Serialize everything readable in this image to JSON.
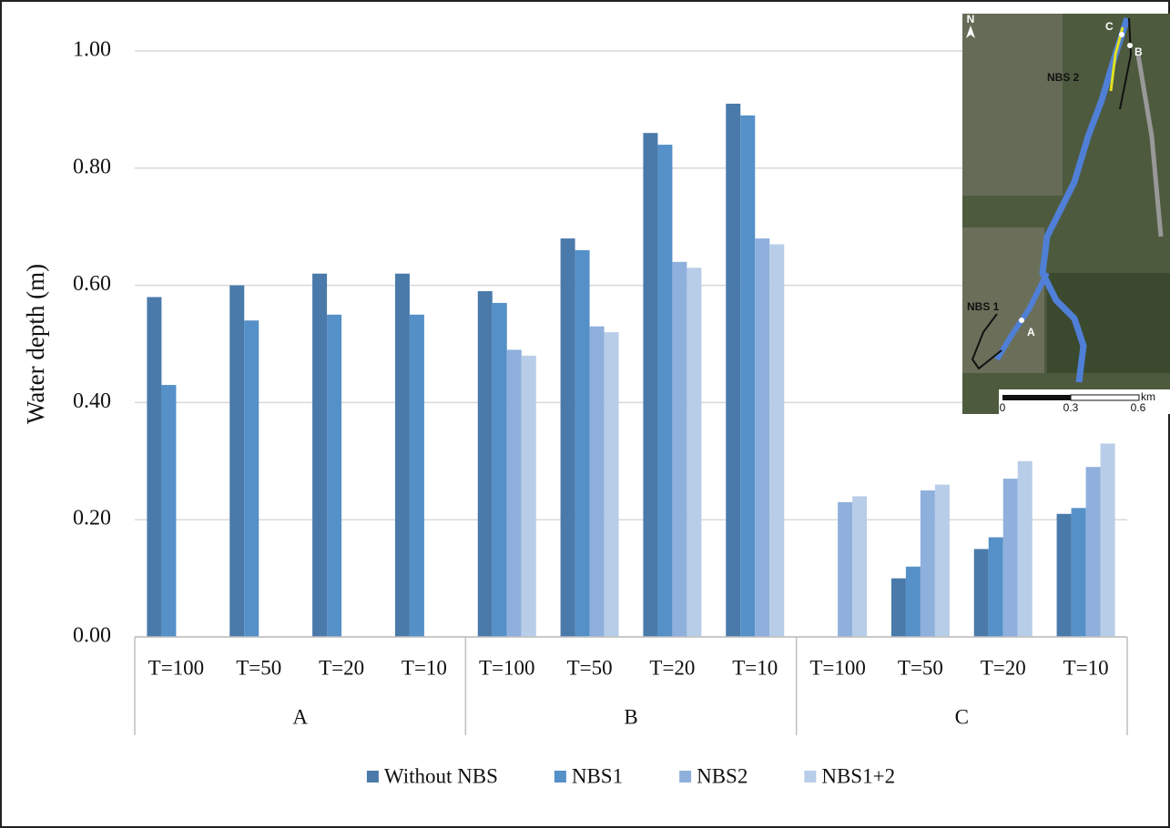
{
  "chart_data": {
    "type": "bar",
    "y_label": "Water depth (m)",
    "categories": [
      "T=100",
      "T=50",
      "T=20",
      "T=10",
      "T=100",
      "T=50",
      "T=20",
      "T=10",
      "T=100",
      "T=50",
      "T=20",
      "T=10"
    ],
    "groups": [
      "A",
      "B",
      "C"
    ],
    "series": [
      {
        "name": "Without NBS",
        "color": "#4a7aaa",
        "values": [
          0.58,
          0.6,
          0.62,
          0.62,
          0.59,
          0.68,
          0.86,
          0.91,
          null,
          0.1,
          0.15,
          0.21
        ]
      },
      {
        "name": "NBS1",
        "color": "#5590c8",
        "values": [
          0.43,
          0.54,
          0.55,
          0.55,
          0.57,
          0.66,
          0.84,
          0.89,
          null,
          0.12,
          0.17,
          0.22
        ]
      },
      {
        "name": "NBS2",
        "color": "#8fb0dc",
        "values": [
          null,
          null,
          null,
          null,
          0.49,
          0.53,
          0.64,
          0.68,
          0.23,
          0.25,
          0.27,
          0.29
        ]
      },
      {
        "name": "NBS1+2",
        "color": "#b8cde8",
        "values": [
          null,
          null,
          null,
          null,
          0.48,
          0.52,
          0.63,
          0.67,
          0.24,
          0.26,
          0.3,
          0.33
        ]
      }
    ],
    "ylim": [
      0,
      1
    ],
    "yticks": [
      {
        "value": 0,
        "label": "0.00"
      },
      {
        "value": 0.2,
        "label": "0.20"
      },
      {
        "value": 0.4,
        "label": "0.40"
      },
      {
        "value": 0.6,
        "label": "0.60"
      },
      {
        "value": 0.8,
        "label": "0.80"
      },
      {
        "value": 1,
        "label": "1.00"
      }
    ],
    "grid": true,
    "legend": "bottom",
    "map_labels": [
      "N",
      "C",
      "B",
      "NBS 2",
      "NBS 1",
      "A",
      "km",
      "0",
      "0.3",
      "0.6"
    ]
  }
}
